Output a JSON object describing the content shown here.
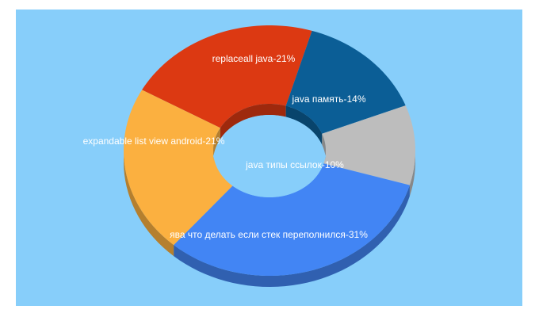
{
  "chart_data": {
    "type": "pie",
    "style": "3d-donut",
    "background": "#87cefa",
    "slices": [
      {
        "label": "replaceall java",
        "percent": 21,
        "color": "#dc3912",
        "text": "replaceall java-21%"
      },
      {
        "label": "java память",
        "percent": 14,
        "color": "#0b5e96",
        "text": "java память-14%"
      },
      {
        "label": "java типы ссылок",
        "percent": 10,
        "color": "#bdbdbd",
        "text": "java типы ссылок-10%"
      },
      {
        "label": "ява что делать если стек переполнился",
        "percent": 31,
        "color": "#4285f4",
        "text": "ява что делать если стек переполнился-31%"
      },
      {
        "label": "expandable list view android",
        "percent": 21,
        "color": "#fbb040",
        "text": "expandable list view android-21%"
      }
    ]
  }
}
